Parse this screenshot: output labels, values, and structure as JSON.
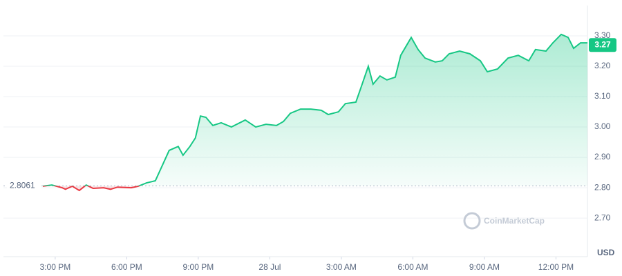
{
  "chart_data": {
    "type": "line",
    "x": [
      2.48,
      2.86,
      3.29,
      3.43,
      3.72,
      4.01,
      4.3,
      4.59,
      5.03,
      5.32,
      5.61,
      6.19,
      6.48,
      6.83,
      7.2,
      7.49,
      7.78,
      8.16,
      8.36,
      8.65,
      8.88,
      9.09,
      9.32,
      9.61,
      9.96,
      10.39,
      10.97,
      11.41,
      11.84,
      12.28,
      12.57,
      12.86,
      13.29,
      13.72,
      14.16,
      14.45,
      14.88,
      15.17,
      15.61,
      15.81,
      16.13,
      16.33,
      16.62,
      16.91,
      17.26,
      17.49,
      17.93,
      18.22,
      18.51,
      18.94,
      19.23,
      19.52,
      19.96,
      20.39,
      20.83,
      21.12,
      21.55,
      21.99,
      22.42,
      22.86,
      23.14,
      23.58,
      23.87,
      24.22,
      24.51,
      24.74,
      25.03,
      25.32
    ],
    "values": [
      2.805,
      2.809,
      2.8,
      2.795,
      2.805,
      2.791,
      2.809,
      2.798,
      2.8,
      2.795,
      2.802,
      2.8,
      2.805,
      2.816,
      2.823,
      2.873,
      2.923,
      2.936,
      2.907,
      2.936,
      2.964,
      3.036,
      3.032,
      3.005,
      3.014,
      3.0,
      3.023,
      3.0,
      3.009,
      3.005,
      3.018,
      3.045,
      3.059,
      3.059,
      3.055,
      3.041,
      3.05,
      3.077,
      3.082,
      3.127,
      3.2,
      3.141,
      3.168,
      3.155,
      3.164,
      3.236,
      3.295,
      3.255,
      3.227,
      3.214,
      3.218,
      3.241,
      3.25,
      3.241,
      3.218,
      3.182,
      3.191,
      3.227,
      3.236,
      3.218,
      3.255,
      3.25,
      3.277,
      3.305,
      3.295,
      3.259,
      3.277,
      3.277
    ],
    "color": "#16c784",
    "below_color": "#ea3943",
    "reference": 2.8061,
    "current_price": 3.27,
    "currency": "USD",
    "watermark": "CoinMarketCap",
    "xlim": [
      0.83,
      25.32
    ],
    "xticks": [
      {
        "value": 3,
        "label": "3:00 PM"
      },
      {
        "value": 6,
        "label": "6:00 PM"
      },
      {
        "value": 9,
        "label": "9:00 PM"
      },
      {
        "value": 12,
        "label": "28 Jul"
      },
      {
        "value": 15,
        "label": "3:00 AM"
      },
      {
        "value": 18,
        "label": "6:00 AM"
      },
      {
        "value": 21,
        "label": "9:00 AM"
      },
      {
        "value": 24,
        "label": "12:00 PM"
      }
    ],
    "ylim": [
      2.573,
      3.4
    ],
    "yticks": [
      {
        "value": 2.7,
        "label": "2.70"
      },
      {
        "value": 2.8,
        "label": "2.80"
      },
      {
        "value": 2.9,
        "label": "2.90"
      },
      {
        "value": 3.0,
        "label": "3.00"
      },
      {
        "value": 3.1,
        "label": "3.10"
      },
      {
        "value": 3.2,
        "label": "3.20"
      },
      {
        "value": 3.3,
        "label": "3.30"
      }
    ],
    "grid": true
  }
}
